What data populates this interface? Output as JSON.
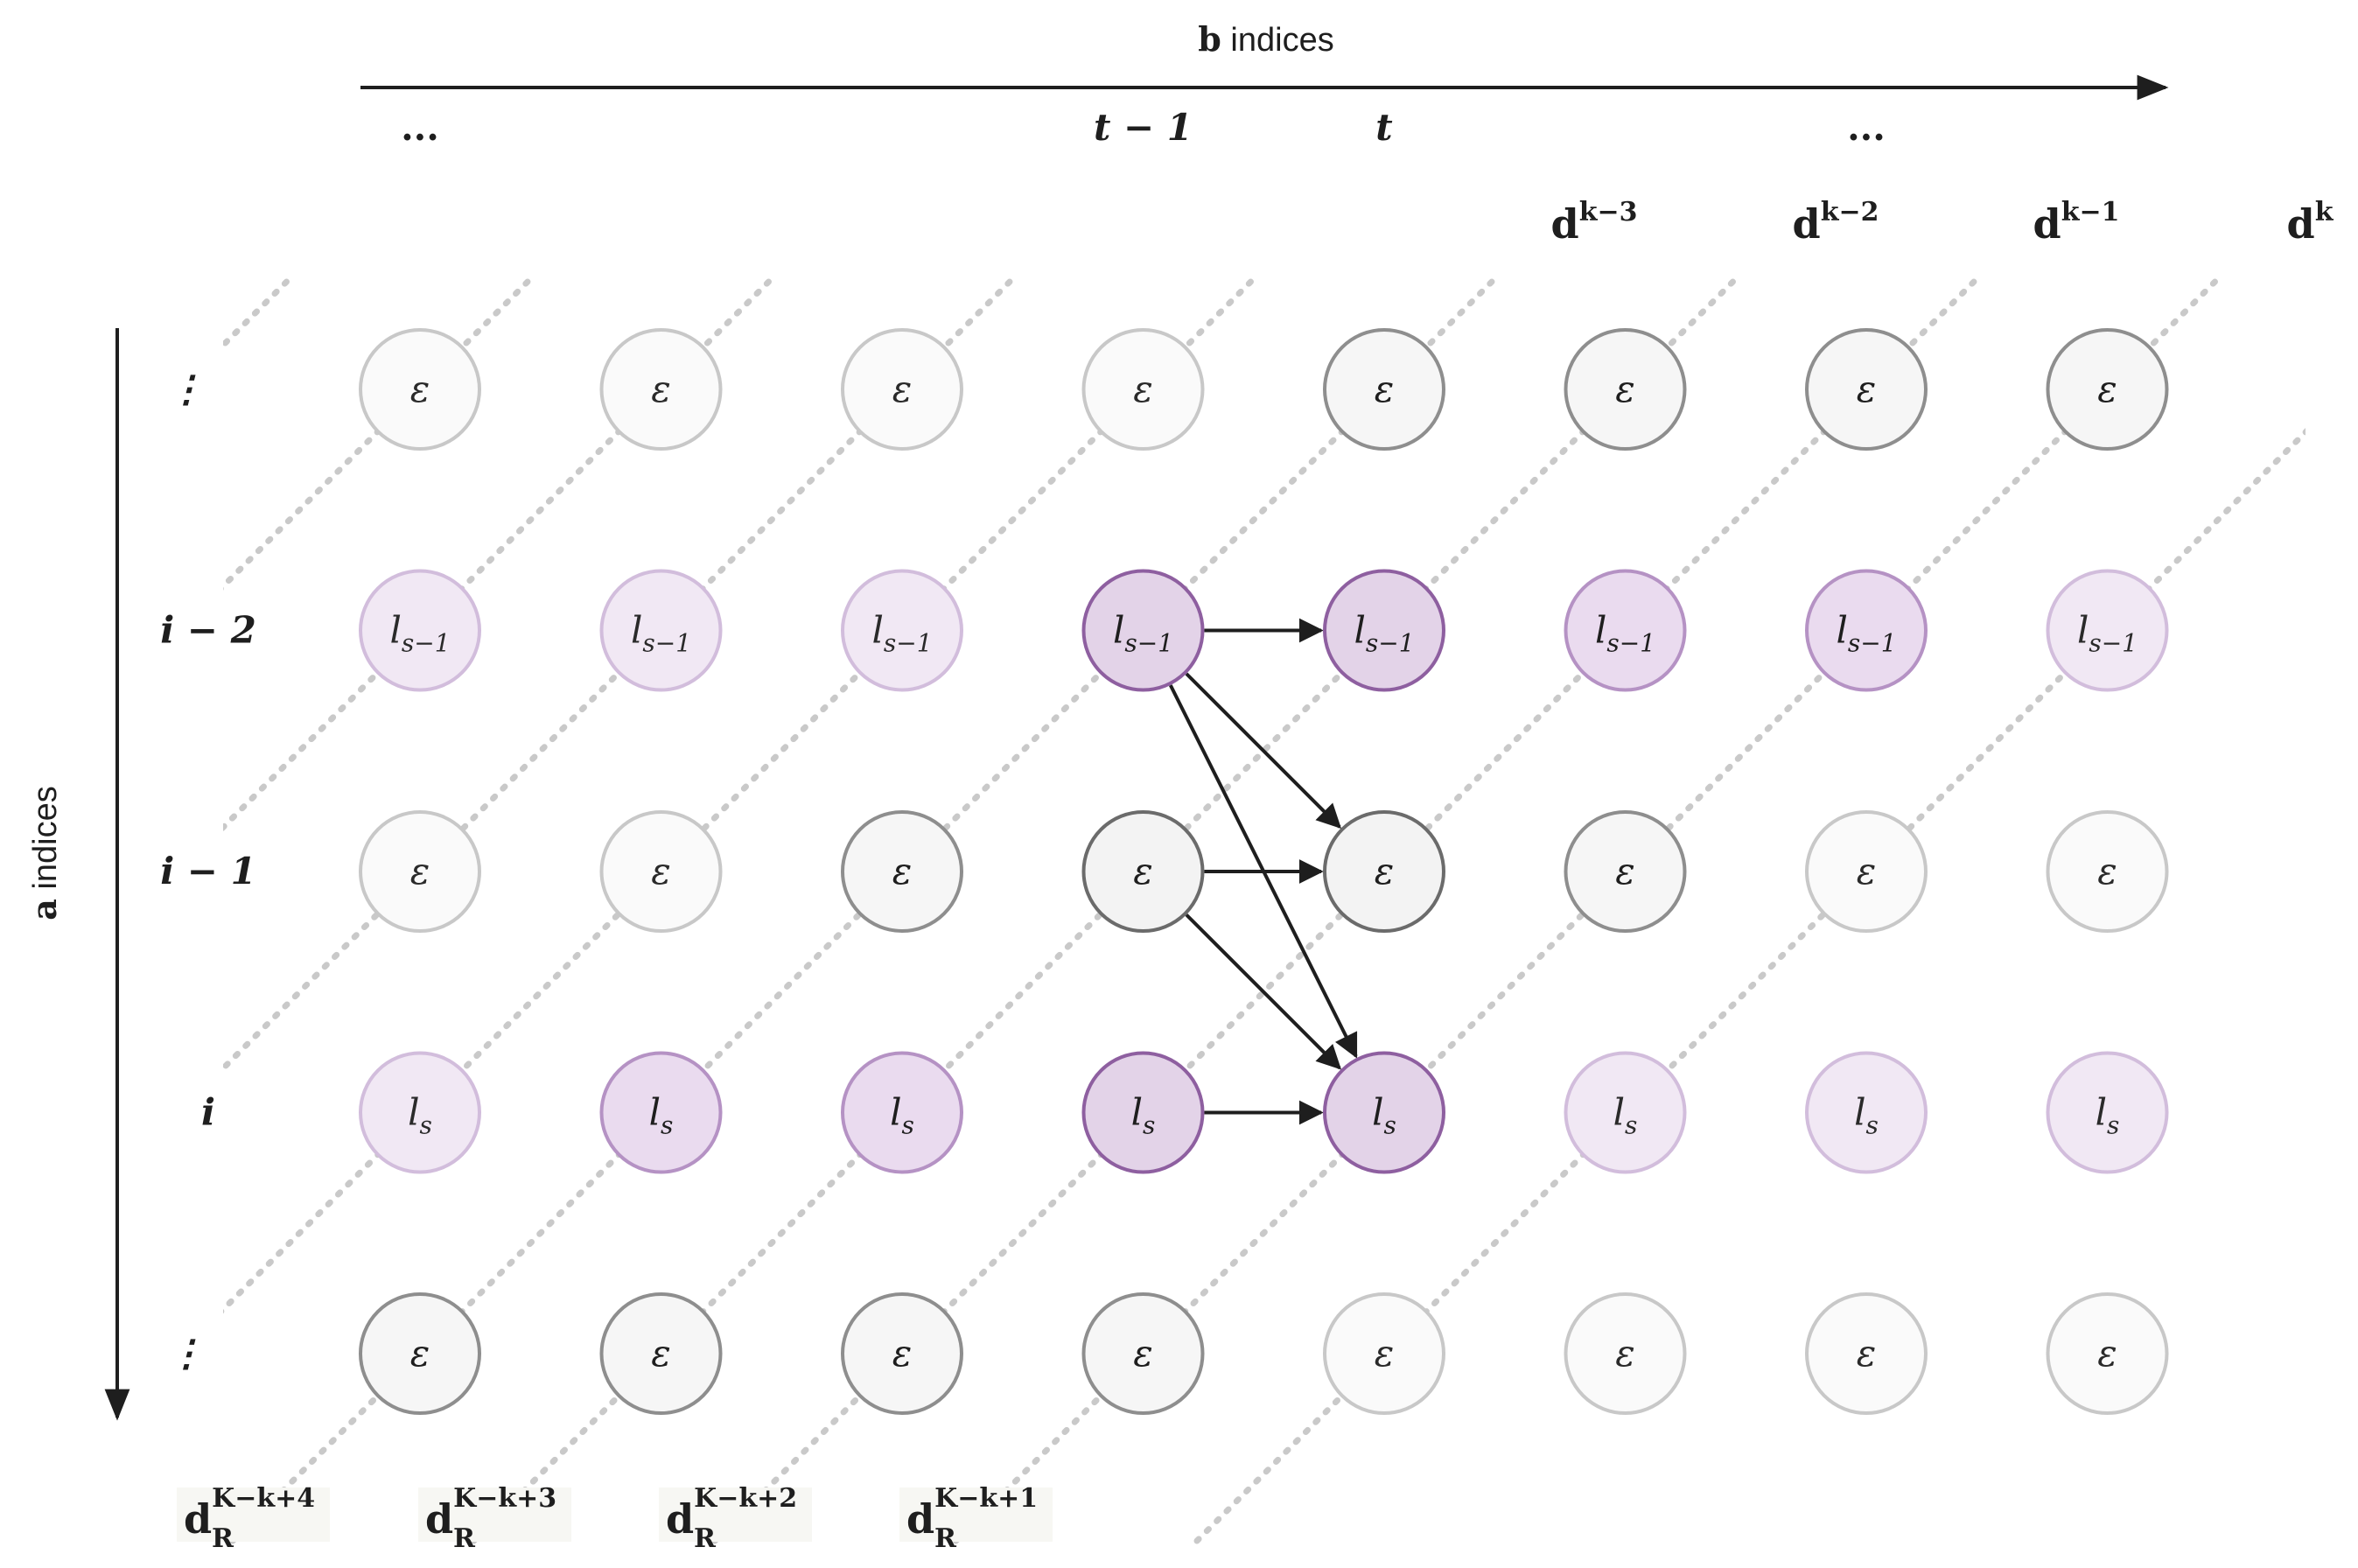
{
  "b_axis": {
    "bold": "b",
    "label": " indices"
  },
  "a_axis": {
    "bold": "a",
    "label": " indices"
  },
  "columns": [
    {
      "label": "..."
    },
    {
      "label": ""
    },
    {
      "label": ""
    },
    {
      "label": "t − 1"
    },
    {
      "label": "t"
    },
    {
      "label": ""
    },
    {
      "label": "..."
    },
    {
      "label": ""
    }
  ],
  "rows": [
    {
      "label": "⋮",
      "node": "ε",
      "kind": "eps"
    },
    {
      "label": "i − 2",
      "node": "l",
      "sub": "s−1",
      "kind": "purple"
    },
    {
      "label": "i − 1",
      "node": "ε",
      "kind": "eps"
    },
    {
      "label": "i",
      "node": "l",
      "sub": "s",
      "kind": "purple"
    },
    {
      "label": "⋮",
      "node": "ε",
      "kind": "eps"
    }
  ],
  "top_diagonals": [
    {
      "base": "d",
      "sup": "k−3"
    },
    {
      "base": "d",
      "sup": "k−2"
    },
    {
      "base": "d",
      "sup": "k−1"
    },
    {
      "base": "d",
      "sup": "k"
    }
  ],
  "bottom_diagonals": [
    {
      "base": "d",
      "sub": "R",
      "sup": "K−k+4"
    },
    {
      "base": "d",
      "sub": "R",
      "sup": "K−k+3"
    },
    {
      "base": "d",
      "sub": "R",
      "sup": "K−k+2"
    },
    {
      "base": "d",
      "sub": "R",
      "sup": "K−k+1"
    }
  ],
  "node_shades": [
    [
      "light",
      "light",
      "light",
      "light",
      "dark",
      "dark",
      "dark",
      "dark"
    ],
    [
      "light",
      "light",
      "light",
      "strong",
      "strong",
      "medium",
      "medium",
      "light"
    ],
    [
      "light",
      "light",
      "dark",
      "darker",
      "darker",
      "dark",
      "light",
      "light"
    ],
    [
      "light",
      "medium",
      "medium",
      "strong",
      "strong",
      "light",
      "light",
      "light"
    ],
    [
      "dark",
      "dark",
      "dark",
      "dark",
      "light",
      "light",
      "light",
      "light"
    ]
  ],
  "edges": [
    {
      "from": [
        1,
        3
      ],
      "to": [
        1,
        4
      ]
    },
    {
      "from": [
        1,
        3
      ],
      "to": [
        2,
        4
      ]
    },
    {
      "from": [
        1,
        3
      ],
      "to": [
        3,
        4
      ]
    },
    {
      "from": [
        2,
        3
      ],
      "to": [
        2,
        4
      ]
    },
    {
      "from": [
        2,
        3
      ],
      "to": [
        3,
        4
      ]
    },
    {
      "from": [
        3,
        3
      ],
      "to": [
        3,
        4
      ]
    }
  ],
  "colors": {
    "purple_stroke": "#8e5fa0",
    "purple_fill": "#e3d3e8",
    "eps_stroke": "#6b6b6b",
    "eps_fill": "#f6f6f6",
    "diagonal": "#c9c9c9",
    "arrow": "#1e1e1e"
  }
}
